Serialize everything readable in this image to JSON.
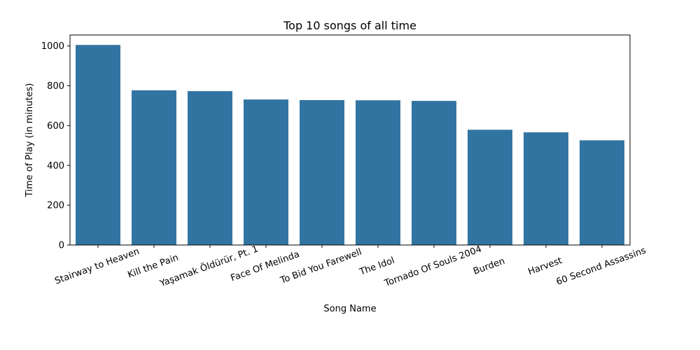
{
  "chart_data": {
    "type": "bar",
    "title": "Top 10 songs of all time",
    "xlabel": "Song Name",
    "ylabel": "Time of Play (in minutes)",
    "categories": [
      "Stairway to Heaven",
      "Kill the Pain",
      "Yaşamak Öldürür, Pt. 1",
      "Face Of Melinda",
      "To Bid You Farewell",
      "The Idol",
      "Tornado Of Souls 2004",
      "Burden",
      "Harvest",
      "60 Second Assassins"
    ],
    "values": [
      1005,
      777,
      773,
      731,
      728,
      727,
      724,
      579,
      566,
      526
    ],
    "ylim": [
      0,
      1055
    ],
    "yticks": [
      0,
      200,
      400,
      600,
      800,
      1000
    ],
    "grid": false,
    "legend": "none",
    "colors": {
      "bar": "#3274a1",
      "axis": "#000000",
      "background": "#ffffff"
    }
  }
}
